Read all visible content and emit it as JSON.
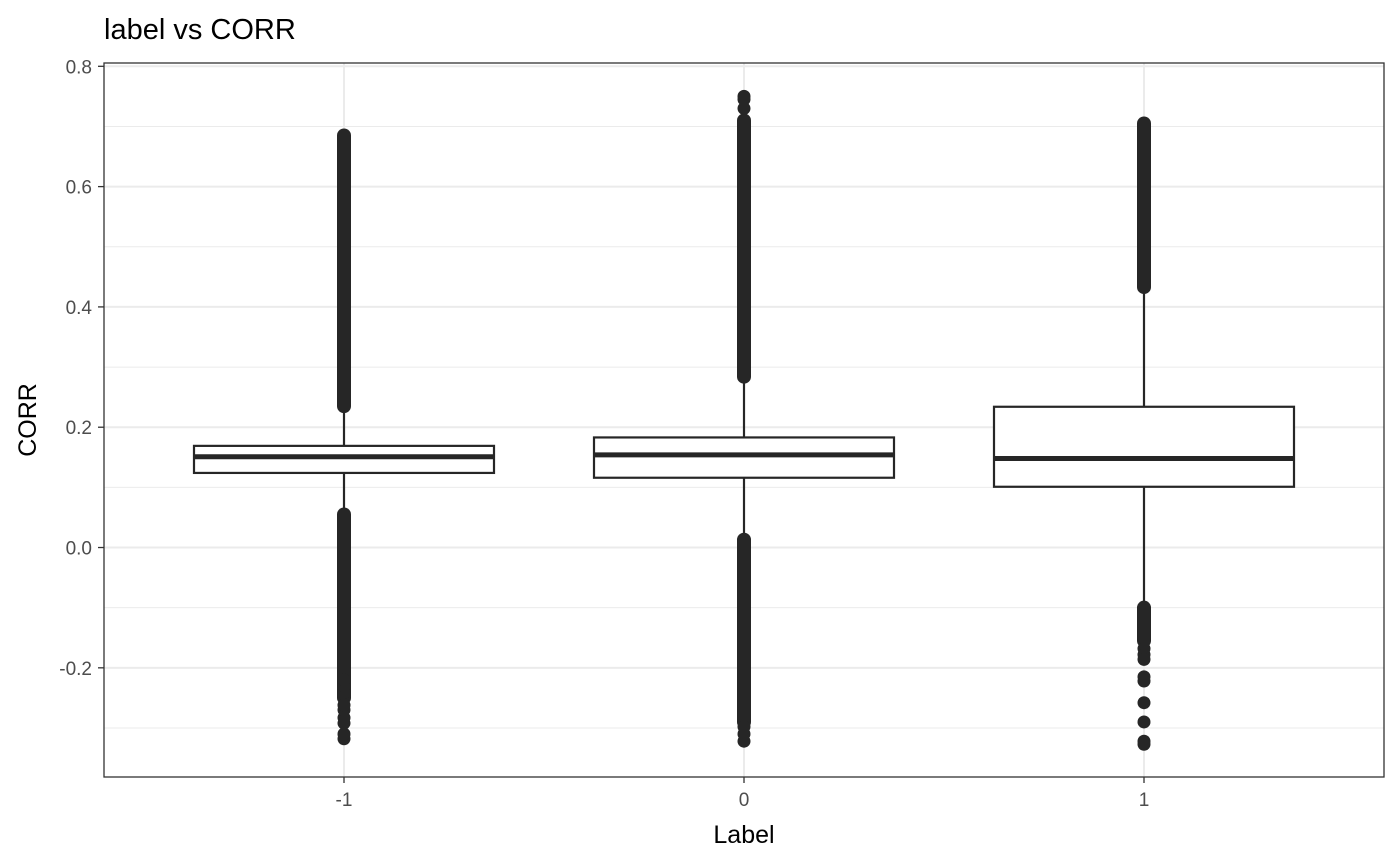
{
  "chart_data": {
    "type": "boxplot",
    "title": "label vs CORR",
    "xlabel": "Label",
    "ylabel": "CORR",
    "ylim": [
      -0.3815,
      0.8055
    ],
    "y_ticks": [
      -0.2,
      0.0,
      0.2,
      0.4,
      0.6,
      0.8
    ],
    "y_tick_labels": [
      "-0.2",
      "0.0",
      "0.2",
      "0.4",
      "0.6",
      "0.8"
    ],
    "grid": true,
    "colors": {
      "box_stroke": "#262626",
      "outlier": "#262626",
      "grid": "#ebebeb",
      "panel_border": "#333333"
    },
    "categories": [
      "-1",
      "0",
      "1"
    ],
    "boxes": [
      {
        "label": "-1",
        "whisker_low": 0.058,
        "q1": 0.124,
        "median": 0.151,
        "q3": 0.169,
        "whisker_high": 0.233,
        "outlier_bands": [
          [
            -0.25,
            0.055
          ],
          [
            0.235,
            0.685
          ]
        ],
        "outliers": [
          -0.318,
          -0.31,
          -0.292,
          -0.283,
          -0.27,
          -0.262,
          -0.241,
          -0.23,
          -0.22
        ]
      },
      {
        "label": "0",
        "whisker_low": 0.016,
        "q1": 0.116,
        "median": 0.154,
        "q3": 0.183,
        "whisker_high": 0.282,
        "outlier_bands": [
          [
            -0.29,
            0.013
          ],
          [
            0.284,
            0.71
          ]
        ],
        "outliers": [
          -0.322,
          -0.31,
          -0.298,
          0.73,
          0.745,
          0.75
        ]
      },
      {
        "label": "1",
        "whisker_low": -0.097,
        "q1": 0.101,
        "median": 0.148,
        "q3": 0.234,
        "whisker_high": 0.432,
        "outlier_bands": [
          [
            -0.155,
            -0.1
          ],
          [
            0.433,
            0.705
          ]
        ],
        "outliers": [
          -0.168,
          -0.178,
          -0.186,
          -0.215,
          -0.222,
          -0.258,
          -0.29,
          -0.322,
          -0.327
        ]
      }
    ]
  }
}
